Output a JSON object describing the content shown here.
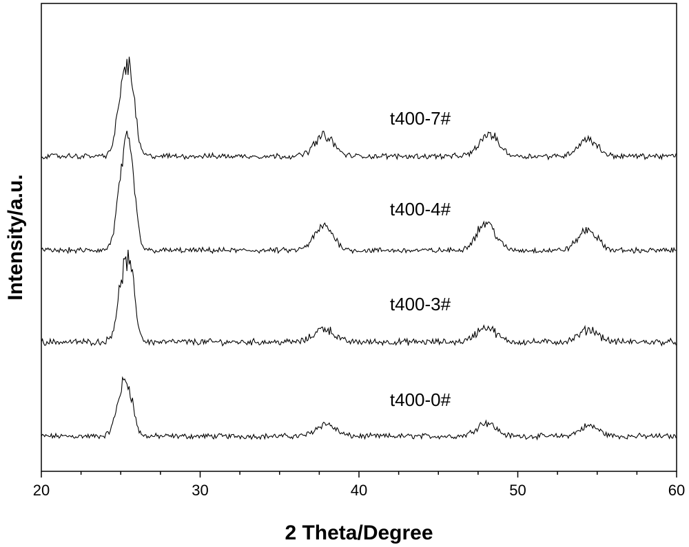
{
  "chart_data": {
    "type": "line",
    "xlabel": "2 Theta/Degree",
    "ylabel": "Intensity/a.u.",
    "xlim": [
      20,
      60
    ],
    "xticks": [
      20,
      30,
      40,
      50,
      60
    ],
    "x_minor_step": 2.5,
    "y_ticks_shown": false,
    "grid": false,
    "legend": "none",
    "line_color": "#000000",
    "series": [
      {
        "name": "t400-0#",
        "peaks": [
          [
            25.2,
            75
          ],
          [
            37.9,
            18
          ],
          [
            48.0,
            20
          ],
          [
            54.5,
            15
          ]
        ],
        "noise": 6
      },
      {
        "name": "t400-3#",
        "peaks": [
          [
            25.3,
            110
          ],
          [
            37.8,
            20
          ],
          [
            48.0,
            22
          ],
          [
            54.5,
            18
          ]
        ],
        "noise": 7
      },
      {
        "name": "t400-4#",
        "peaks": [
          [
            25.3,
            145
          ],
          [
            37.8,
            35
          ],
          [
            48.0,
            40
          ],
          [
            54.4,
            30
          ]
        ],
        "noise": 6
      },
      {
        "name": "t400-7#",
        "peaks": [
          [
            25.3,
            125
          ],
          [
            37.8,
            30
          ],
          [
            48.2,
            32
          ],
          [
            54.4,
            25
          ]
        ],
        "noise": 6
      }
    ]
  }
}
